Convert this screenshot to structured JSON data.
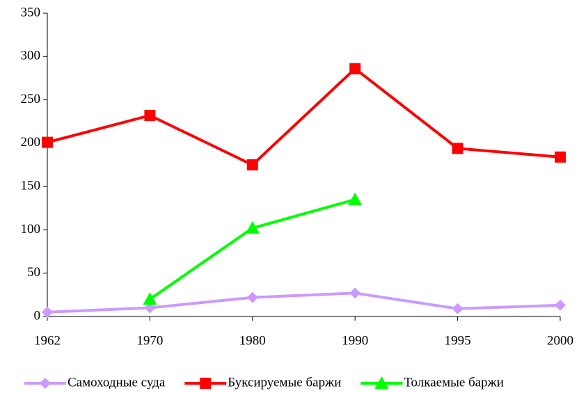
{
  "chart_data": {
    "type": "line",
    "categories": [
      "1962",
      "1970",
      "1980",
      "1990",
      "1995",
      "2000"
    ],
    "series": [
      {
        "name": "Самоходные суда",
        "color": "#cc99ff",
        "marker": "diamond",
        "values": [
          5,
          10,
          22,
          27,
          9,
          13
        ]
      },
      {
        "name": "Буксируемые баржи",
        "color": "#ff0000",
        "marker": "square",
        "values": [
          201,
          232,
          175,
          286,
          194,
          184
        ]
      },
      {
        "name": "Толкаемые баржи",
        "color": "#00ff00",
        "marker": "triangle",
        "values": [
          null,
          20,
          102,
          135,
          null,
          null
        ]
      }
    ],
    "ylim": [
      0,
      350
    ],
    "yticks": [
      0,
      50,
      100,
      150,
      200,
      250,
      300,
      350
    ],
    "grid": false,
    "legend": "bottom"
  }
}
